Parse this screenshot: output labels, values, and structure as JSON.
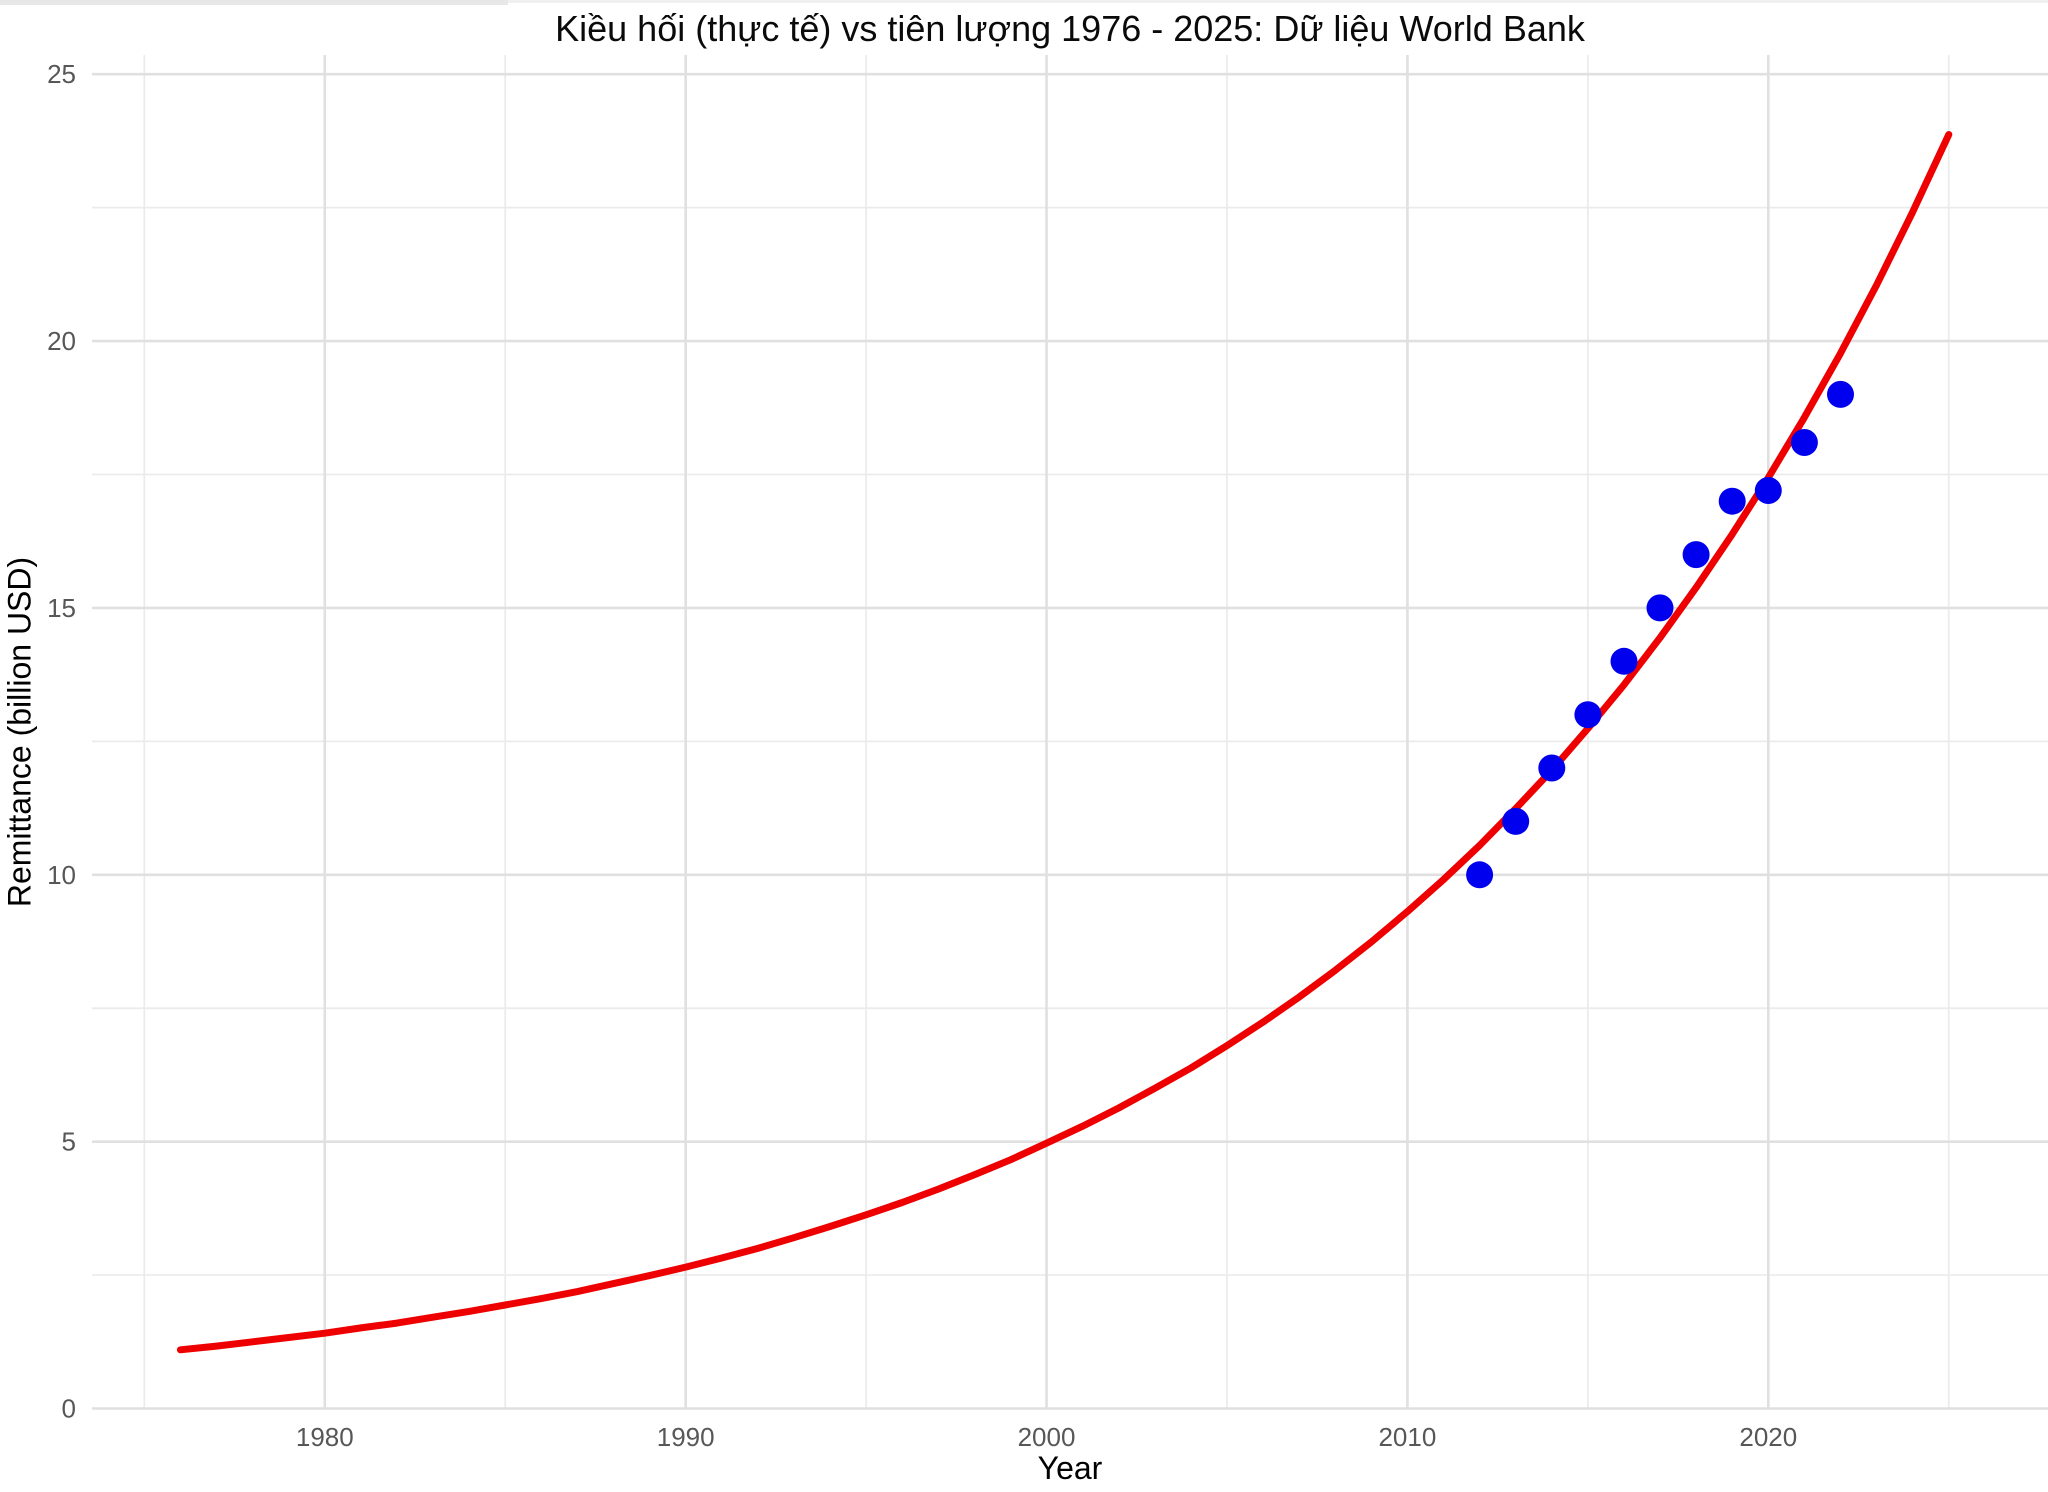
{
  "page": {
    "background": "#ffffff"
  },
  "chart_data": {
    "type": "line+scatter",
    "title": "Kiều hối (thực tế) vs tiên lượng 1976 - 2025: Dữ liệu World Bank",
    "xlabel": "Year",
    "ylabel": "Remittance (billion USD)",
    "grid": true,
    "legend": "none",
    "xlim": [
      1973.55,
      2027.75
    ],
    "ylim": [
      0,
      25.36
    ],
    "x_major_ticks": [
      1980,
      1990,
      2000,
      2010,
      2020
    ],
    "x_minor_ticks": [
      1975,
      1985,
      1995,
      2005,
      2015,
      2025
    ],
    "y_major_ticks": [
      0,
      5,
      10,
      15,
      20,
      25
    ],
    "y_minor_ticks": [
      2.5,
      7.5,
      12.5,
      17.5,
      22.5
    ],
    "series": [
      {
        "id": "forecast-curve",
        "type": "line",
        "color": "#ee0000",
        "points": [
          [
            1976,
            1.1
          ],
          [
            1977,
            1.17
          ],
          [
            1978,
            1.25
          ],
          [
            1979,
            1.33
          ],
          [
            1980,
            1.41
          ],
          [
            1981,
            1.51
          ],
          [
            1982,
            1.6
          ],
          [
            1983,
            1.71
          ],
          [
            1984,
            1.82
          ],
          [
            1985,
            1.94
          ],
          [
            1986,
            2.06
          ],
          [
            1987,
            2.19
          ],
          [
            1988,
            2.34
          ],
          [
            1989,
            2.49
          ],
          [
            1990,
            2.65
          ],
          [
            1991,
            2.82
          ],
          [
            1992,
            3.0
          ],
          [
            1993,
            3.2
          ],
          [
            1994,
            3.41
          ],
          [
            1995,
            3.63
          ],
          [
            1996,
            3.86
          ],
          [
            1997,
            4.11
          ],
          [
            1998,
            4.38
          ],
          [
            1999,
            4.66
          ],
          [
            2000,
            4.97
          ],
          [
            2001,
            5.29
          ],
          [
            2002,
            5.63
          ],
          [
            2003,
            6.0
          ],
          [
            2004,
            6.38
          ],
          [
            2005,
            6.8
          ],
          [
            2006,
            7.24
          ],
          [
            2007,
            7.71
          ],
          [
            2008,
            8.21
          ],
          [
            2009,
            8.74
          ],
          [
            2010,
            9.31
          ],
          [
            2011,
            9.91
          ],
          [
            2012,
            10.55
          ],
          [
            2013,
            11.24
          ],
          [
            2014,
            11.96
          ],
          [
            2015,
            12.74
          ],
          [
            2016,
            13.56
          ],
          [
            2017,
            14.44
          ],
          [
            2018,
            15.38
          ],
          [
            2019,
            16.38
          ],
          [
            2020,
            17.44
          ],
          [
            2021,
            18.57
          ],
          [
            2022,
            19.77
          ],
          [
            2023,
            21.05
          ],
          [
            2024,
            22.42
          ],
          [
            2025,
            23.87
          ]
        ]
      },
      {
        "id": "actual-points",
        "type": "scatter",
        "color": "#0000ee",
        "points": [
          [
            2012,
            10.0
          ],
          [
            2013,
            11.0
          ],
          [
            2014,
            12.0
          ],
          [
            2015,
            13.0
          ],
          [
            2016,
            14.0
          ],
          [
            2017,
            15.0
          ],
          [
            2018,
            16.0
          ],
          [
            2019,
            17.0
          ],
          [
            2020,
            17.2
          ],
          [
            2021,
            18.1
          ],
          [
            2022,
            19.0
          ]
        ]
      }
    ]
  }
}
